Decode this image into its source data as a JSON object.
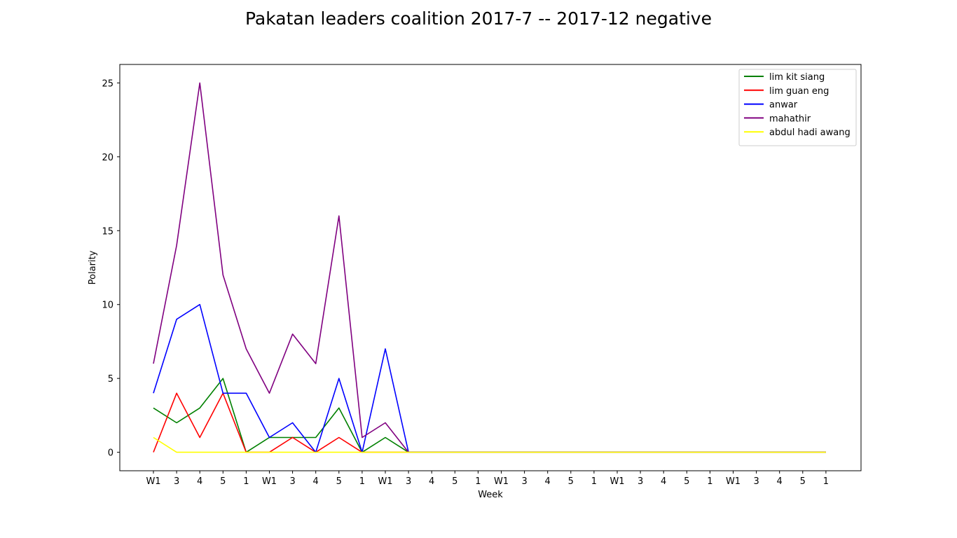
{
  "chart_data": {
    "type": "line",
    "title": "Pakatan leaders coalition 2017-7 -- 2017-12 negative",
    "xlabel": "Week",
    "ylabel": "Polarity",
    "categories": [
      "W1",
      "3",
      "4",
      "5",
      "1",
      "W1",
      "3",
      "4",
      "5",
      "1",
      "W1",
      "3",
      "4",
      "5",
      "1",
      "W1",
      "3",
      "4",
      "5",
      "1",
      "W1",
      "3",
      "4",
      "5",
      "1",
      "W1",
      "3",
      "4",
      "5",
      "1"
    ],
    "ylim": [
      -1.25,
      26.25
    ],
    "yticks": [
      0,
      5,
      10,
      15,
      20,
      25
    ],
    "grid": false,
    "legend_position": "top-right",
    "series": [
      {
        "name": "lim kit siang",
        "color": "#008000",
        "values": [
          3,
          2,
          3,
          5,
          0,
          1,
          1,
          1,
          3,
          0,
          1,
          0,
          0,
          0,
          0,
          0,
          0,
          0,
          0,
          0,
          0,
          0,
          0,
          0,
          0,
          0,
          0,
          0,
          0,
          0
        ]
      },
      {
        "name": "lim guan eng",
        "color": "#ff0000",
        "values": [
          0,
          4,
          1,
          4,
          0,
          0,
          1,
          0,
          1,
          0,
          0,
          0,
          0,
          0,
          0,
          0,
          0,
          0,
          0,
          0,
          0,
          0,
          0,
          0,
          0,
          0,
          0,
          0,
          0,
          0
        ]
      },
      {
        "name": "anwar",
        "color": "#0000ff",
        "values": [
          4,
          9,
          10,
          4,
          4,
          1,
          2,
          0,
          5,
          0,
          7,
          0,
          0,
          0,
          0,
          0,
          0,
          0,
          0,
          0,
          0,
          0,
          0,
          0,
          0,
          0,
          0,
          0,
          0,
          0
        ]
      },
      {
        "name": "mahathir",
        "color": "#800080",
        "values": [
          6,
          14,
          25,
          12,
          7,
          4,
          8,
          6,
          16,
          1,
          2,
          0,
          0,
          0,
          0,
          0,
          0,
          0,
          0,
          0,
          0,
          0,
          0,
          0,
          0,
          0,
          0,
          0,
          0,
          0
        ]
      },
      {
        "name": "abdul hadi awang",
        "color": "#ffff00",
        "values": [
          1,
          0,
          0,
          0,
          0,
          0,
          0,
          0,
          0,
          0,
          0,
          0,
          0,
          0,
          0,
          0,
          0,
          0,
          0,
          0,
          0,
          0,
          0,
          0,
          0,
          0,
          0,
          0,
          0,
          0
        ]
      }
    ]
  }
}
